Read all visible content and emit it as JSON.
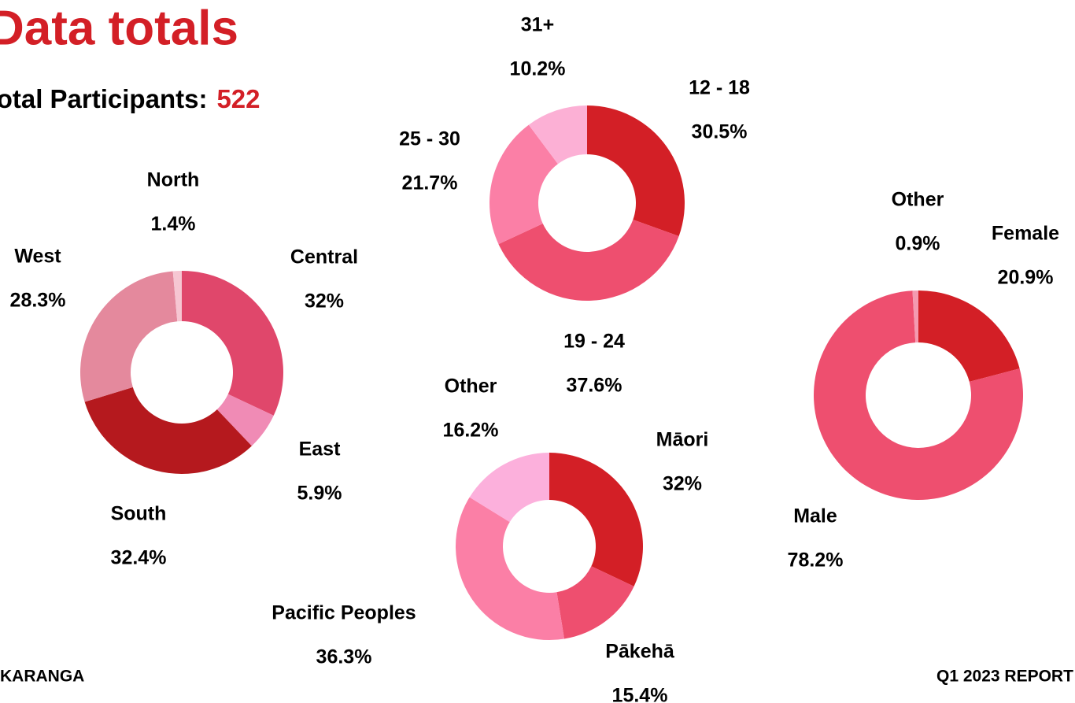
{
  "header": {
    "title": "Data totals",
    "participants_label": "Total Participants:",
    "participants": 522
  },
  "footer": {
    "left": "KARANGA",
    "right": "Q1 2023 REPORT"
  },
  "chart_data": [
    {
      "type": "donut",
      "categories": [
        "Central",
        "East",
        "South",
        "West",
        "North"
      ],
      "values": [
        32,
        5.9,
        32.4,
        28.3,
        1.4
      ],
      "value_labels": [
        "32%",
        "5.9%",
        "32.4%",
        "28.3%",
        "1.4%"
      ],
      "colors": [
        "#e0476b",
        "#f08bb5",
        "#b5191e",
        "#e4899d",
        "#f6c6d2"
      ]
    },
    {
      "type": "donut",
      "categories": [
        "12 - 18",
        "19 - 24",
        "25 - 30",
        "31+"
      ],
      "values": [
        30.5,
        37.6,
        21.7,
        10.2
      ],
      "value_labels": [
        "30.5%",
        "37.6%",
        "21.7%",
        "10.2%"
      ],
      "colors": [
        "#d31f26",
        "#ee4f6f",
        "#fb7fa6",
        "#fcb0d5"
      ]
    },
    {
      "type": "donut",
      "categories": [
        "Māori",
        "Pākehā",
        "Pacific Peoples",
        "Other"
      ],
      "values": [
        32,
        15.4,
        36.3,
        16.2
      ],
      "value_labels": [
        "32%",
        "15.4%",
        "36.3%",
        "16.2%"
      ],
      "colors": [
        "#d31f26",
        "#ee4f6f",
        "#fb7fa6",
        "#fcb0dc"
      ]
    },
    {
      "type": "donut",
      "categories": [
        "Female",
        "Male",
        "Other"
      ],
      "values": [
        20.9,
        78.2,
        0.9
      ],
      "value_labels": [
        "20.9%",
        "78.2%",
        "0.9%"
      ],
      "colors": [
        "#d31f26",
        "#ee4f6f",
        "#f49ab0"
      ]
    }
  ]
}
